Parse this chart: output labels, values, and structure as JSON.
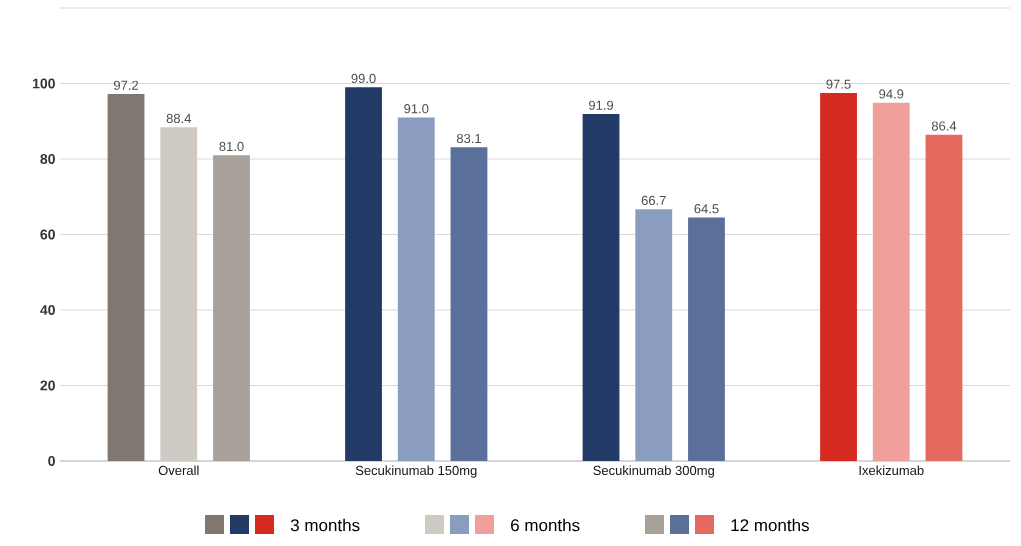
{
  "chart_data": {
    "type": "bar",
    "categories": [
      "Overall",
      "Secukinumab 150mg",
      "Secukinumab 300mg",
      "Ixekizumab"
    ],
    "series": [
      {
        "name": "3 months",
        "colors": [
          "#7f7770",
          "#223a66",
          "#223a66",
          "#d42a20"
        ],
        "values": [
          97.2,
          99.0,
          91.9,
          97.5
        ],
        "value_labels": [
          "97.2",
          "99.0",
          "91.9",
          "97.5"
        ]
      },
      {
        "name": "6 months",
        "colors": [
          "#cfcac4",
          "#8a9cc0",
          "#8a9cc0",
          "#f0a09a"
        ],
        "values": [
          88.4,
          91.0,
          66.7,
          94.9
        ],
        "value_labels": [
          "88.4",
          "91.0",
          "66.7",
          "94.9"
        ]
      },
      {
        "name": "12 months",
        "colors": [
          "#a8a19a",
          "#5a6f99",
          "#5a6f99",
          "#e46a60"
        ],
        "values": [
          81.0,
          83.1,
          64.5,
          86.4
        ],
        "value_labels": [
          "81.0",
          "83.1",
          "64.5",
          "86.4"
        ]
      }
    ],
    "ylim": [
      0,
      120
    ],
    "yticks": [
      0,
      20,
      40,
      60,
      80,
      100,
      {
        "value": 120,
        "label": null
      }
    ],
    "grid": "y",
    "legend": "bottom"
  }
}
